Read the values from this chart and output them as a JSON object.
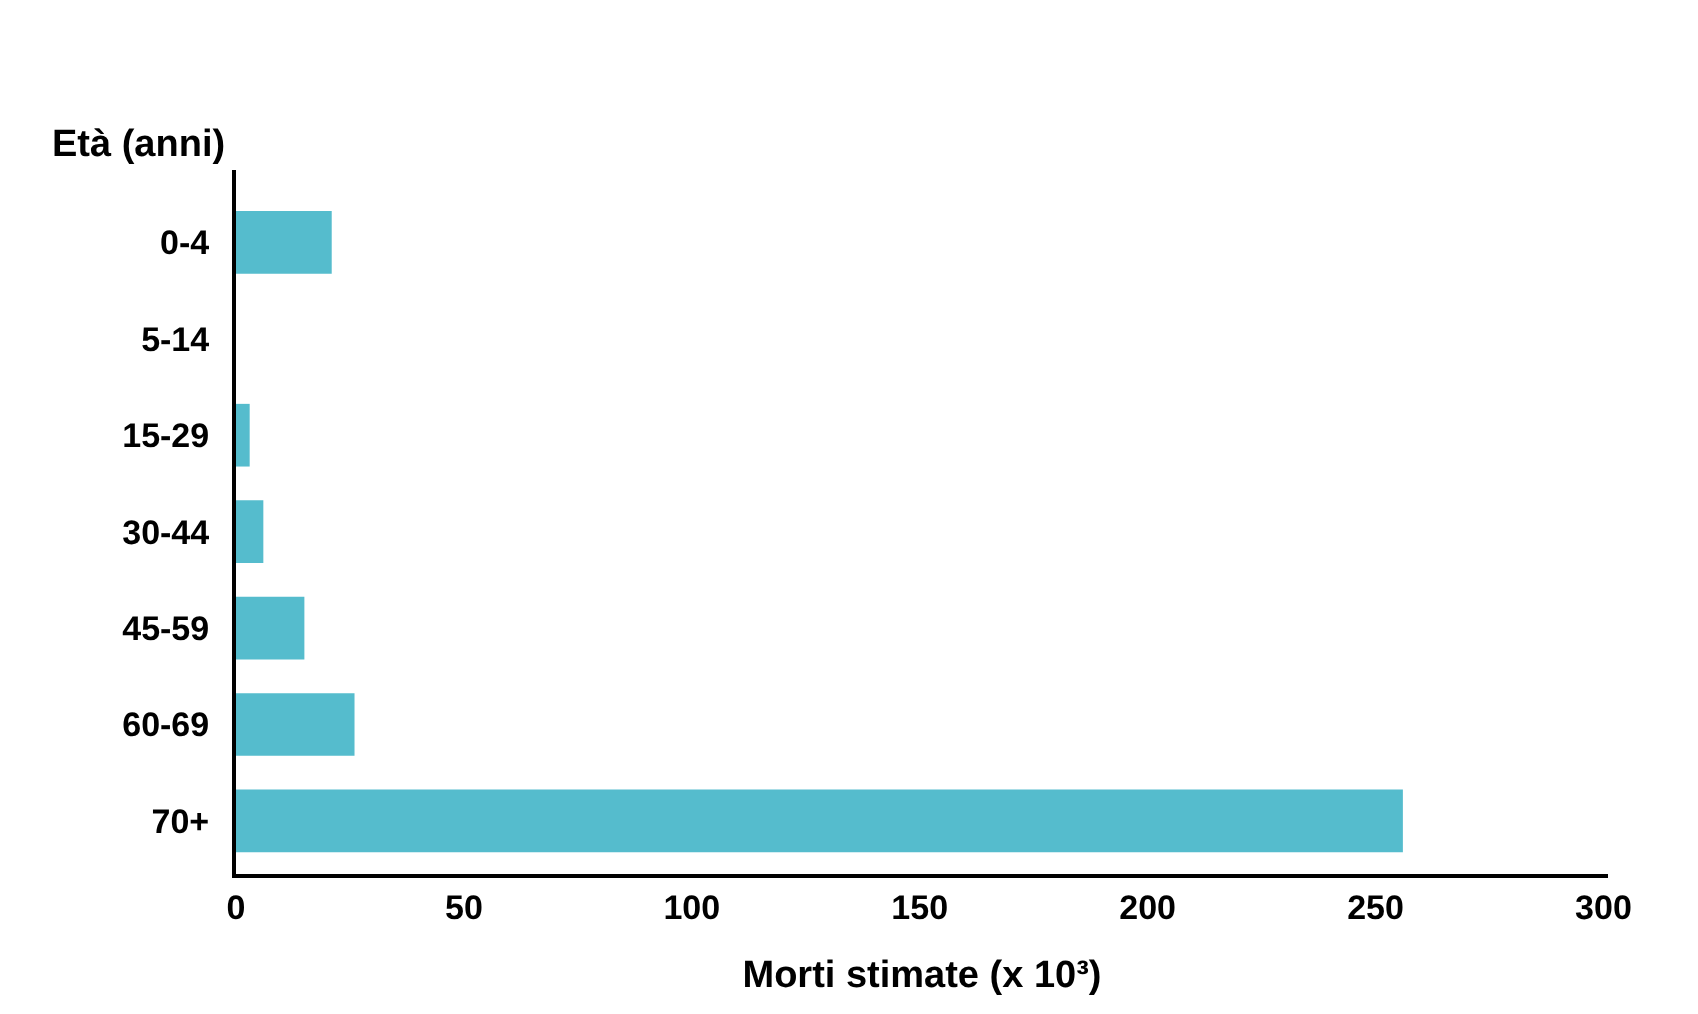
{
  "chart_data": {
    "type": "bar",
    "orientation": "horizontal",
    "ylabel": "Età (anni)",
    "xlabel": "Morti stimate (x 10³)",
    "categories": [
      "0-4",
      "5-14",
      "15-29",
      "30-44",
      "45-59",
      "60-69",
      "70+"
    ],
    "values": [
      21,
      0,
      3,
      6,
      15,
      26,
      256
    ],
    "color": "#55bccd",
    "xlim": [
      0,
      301
    ],
    "xticks": [
      0,
      50,
      100,
      150,
      200,
      250,
      300
    ],
    "legend": false
  }
}
